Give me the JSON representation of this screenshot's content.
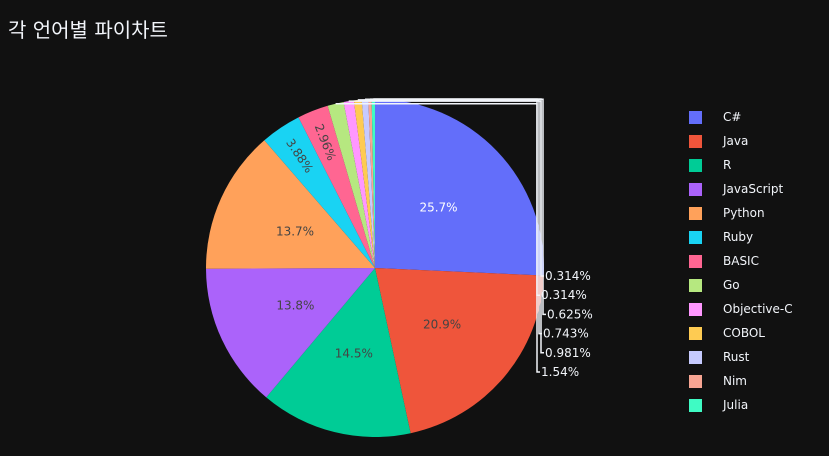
{
  "page": {
    "title": "각 언어별 파이차트"
  },
  "chart_data": {
    "type": "pie",
    "title": "각 언어별 파이차트",
    "legend_position": "right",
    "slices": [
      {
        "label": "C#",
        "percent": 25.7,
        "text": "25.7%",
        "color": "#636efa"
      },
      {
        "label": "Java",
        "percent": 20.9,
        "text": "20.9%",
        "color": "#ef553b"
      },
      {
        "label": "R",
        "percent": 14.5,
        "text": "14.5%",
        "color": "#00cc96"
      },
      {
        "label": "JavaScript",
        "percent": 13.8,
        "text": "13.8%",
        "color": "#ab63fa"
      },
      {
        "label": "Python",
        "percent": 13.7,
        "text": "13.7%",
        "color": "#ffa15a"
      },
      {
        "label": "Ruby",
        "percent": 3.88,
        "text": "3.88%",
        "color": "#19d3f3"
      },
      {
        "label": "BASIC",
        "percent": 2.96,
        "text": "2.96%",
        "color": "#ff6692"
      },
      {
        "label": "Go",
        "percent": 1.54,
        "text": "1.54%",
        "color": "#b6e880"
      },
      {
        "label": "Objective-C",
        "percent": 0.981,
        "text": "0.981%",
        "color": "#ff97ff"
      },
      {
        "label": "COBOL",
        "percent": 0.743,
        "text": "0.743%",
        "color": "#fecb52"
      },
      {
        "label": "Rust",
        "percent": 0.625,
        "text": "0.625%",
        "color": "#c6cafe"
      },
      {
        "label": "Nim",
        "percent": 0.314,
        "text": "0.314%",
        "color": "#f7a593"
      },
      {
        "label": "Julia",
        "percent": 0.314,
        "text": "0.314%",
        "color": "#3ffbc4"
      }
    ]
  }
}
